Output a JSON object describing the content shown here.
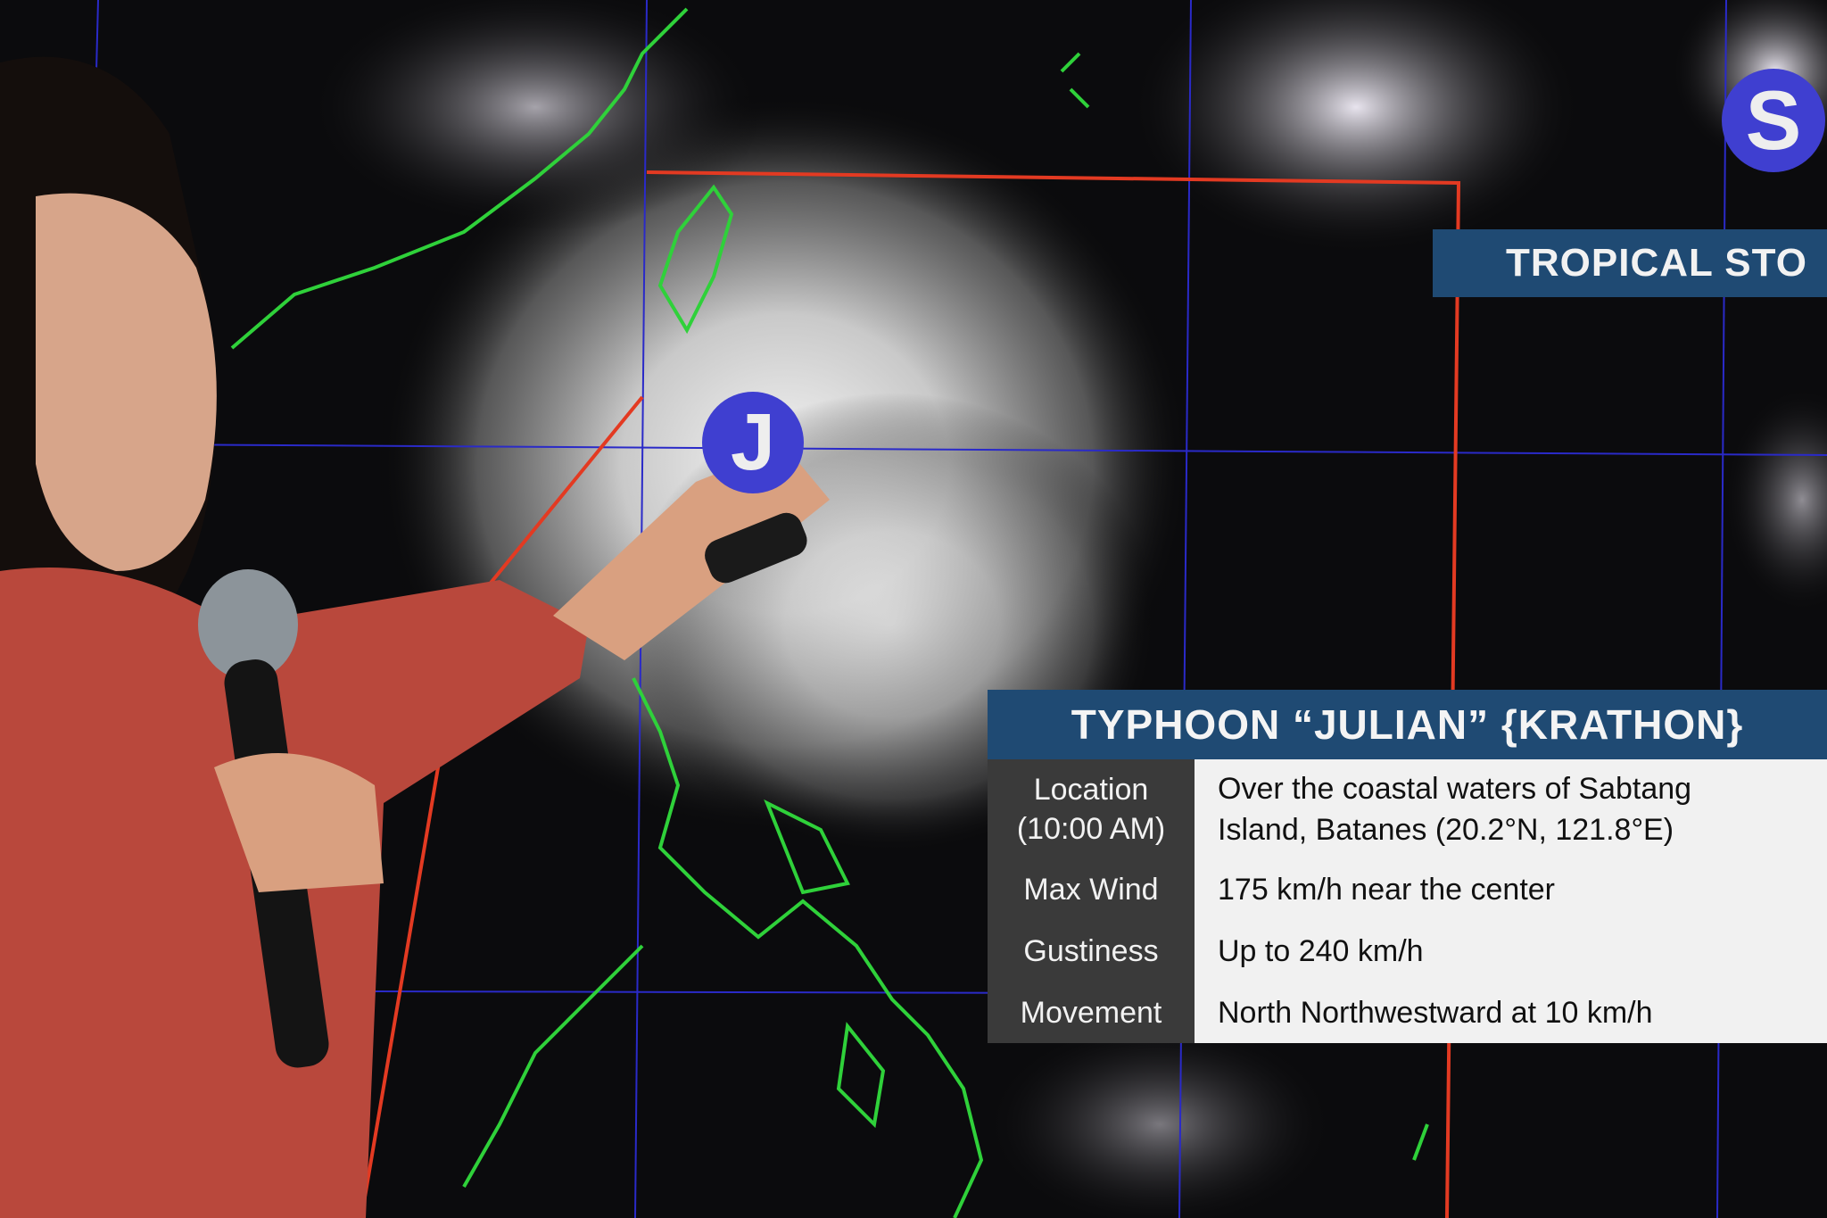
{
  "map": {
    "colors": {
      "background": "#000000",
      "coastline": "#2fd13a",
      "grid": "#2a2ac8",
      "par_box": "#e33a22",
      "banner": "#1f4a73",
      "storm_marker": "#3f3fd0"
    }
  },
  "storm_markers": [
    {
      "letter": "J"
    },
    {
      "letter": "S"
    }
  ],
  "secondary_banner": {
    "title": "TROPICAL STO"
  },
  "info_panel": {
    "title": "TYPHOON “JULIAN” {KRATHON}",
    "rows": [
      {
        "label_line1": "Location",
        "label_line2": "(10:00 AM)",
        "value_line1": "Over the coastal waters of Sabtang",
        "value_line2": "Island, Batanes (20.2°N, 121.8°E)"
      },
      {
        "label": "Max Wind",
        "value": "175 km/h near the center"
      },
      {
        "label": "Gustiness",
        "value": "Up to 240 km/h"
      },
      {
        "label": "Movement",
        "value": "North Northwestward at 10 km/h"
      }
    ]
  }
}
